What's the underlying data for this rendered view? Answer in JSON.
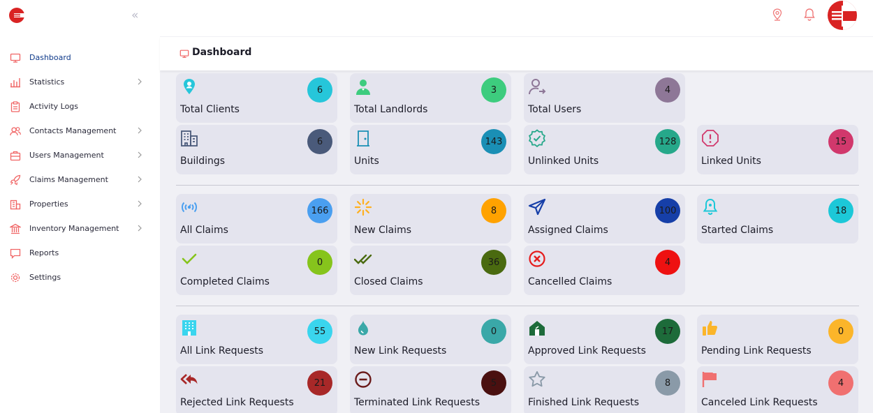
{
  "sidebar": {
    "items": [
      {
        "label": "Dashboard",
        "active": true,
        "chevron": false,
        "icon": "monitor-icon"
      },
      {
        "label": "Statistics",
        "active": false,
        "chevron": true,
        "icon": "bar-chart-icon"
      },
      {
        "label": "Activity Logs",
        "active": false,
        "chevron": false,
        "icon": "clipboard-icon"
      },
      {
        "label": "Contacts Management",
        "active": false,
        "chevron": true,
        "icon": "contacts-icon"
      },
      {
        "label": "Users Management",
        "active": false,
        "chevron": true,
        "icon": "briefcase-icon"
      },
      {
        "label": "Claims Management",
        "active": false,
        "chevron": true,
        "icon": "rocket-icon"
      },
      {
        "label": "Properties",
        "active": false,
        "chevron": true,
        "icon": "building-icon"
      },
      {
        "label": "Inventory Management",
        "active": false,
        "chevron": true,
        "icon": "bank-icon"
      },
      {
        "label": "Reports",
        "active": false,
        "chevron": false,
        "icon": "message-icon"
      },
      {
        "label": "Settings",
        "active": false,
        "chevron": false,
        "icon": "gear-icon"
      }
    ]
  },
  "page": {
    "title": "Dashboard"
  },
  "colors": {
    "brand_red": "#d92323",
    "accent": "#f06464"
  },
  "cards": [
    {
      "label": "Total Clients",
      "value": "6",
      "badge_color": "#26c6da",
      "icon": "client-pin-icon",
      "icon_color": "#26c6da"
    },
    {
      "label": "Total Landlords",
      "value": "3",
      "badge_color": "#3dcc7e",
      "icon": "landlord-icon",
      "icon_color": "#3dcc7e"
    },
    {
      "label": "Total Users",
      "value": "4",
      "badge_color": "#8e7797",
      "icon": "user-arrow-icon",
      "icon_color": "#8e7797"
    },
    {
      "label": "Buildings",
      "value": "6",
      "badge_color": "#4a5a7a",
      "icon": "buildings-icon",
      "icon_color": "#4a5a7a"
    },
    {
      "label": "Units",
      "value": "143",
      "badge_color": "#1a8fb5",
      "icon": "door-icon",
      "icon_color": "#1a8fb5"
    },
    {
      "label": "Unlinked Units",
      "value": "128",
      "badge_color": "#26a88a",
      "icon": "verified-badge-icon",
      "icon_color": "#26a88a"
    },
    {
      "label": "Linked Units",
      "value": "15",
      "badge_color": "#d1386c",
      "icon": "alert-octagon-icon",
      "icon_color": "#d1386c"
    },
    {
      "label": "All Claims",
      "value": "166",
      "badge_color": "#4a9ff0",
      "icon": "broadcast-icon",
      "icon_color": "#4a9ff0"
    },
    {
      "label": "New Claims",
      "value": "8",
      "badge_color": "#ffa200",
      "icon": "sparkle-icon",
      "icon_color": "#ffb020"
    },
    {
      "label": "Assigned Claims",
      "value": "100",
      "badge_color": "#163fa8",
      "icon": "send-arrow-icon",
      "icon_color": "#163fa8"
    },
    {
      "label": "Started Claims",
      "value": "18",
      "badge_color": "#1cc8d8",
      "icon": "bell-icon",
      "icon_color": "#1cc8d8"
    },
    {
      "label": "Completed Claims",
      "value": "0",
      "badge_color": "#86c41c",
      "icon": "check-icon",
      "icon_color": "#86c41c"
    },
    {
      "label": "Closed Claims",
      "value": "36",
      "badge_color": "#4a6a10",
      "icon": "double-check-icon",
      "icon_color": "#4a6a10"
    },
    {
      "label": "Cancelled Claims",
      "value": "4",
      "badge_color": "#ee1111",
      "icon": "x-circle-icon",
      "icon_color": "#e51c1c"
    },
    {
      "label": "All Link Requests",
      "value": "55",
      "badge_color": "#3ad5ee",
      "icon": "office-building-icon",
      "icon_color": "#3ad5ee"
    },
    {
      "label": "New Link Requests",
      "value": "0",
      "badge_color": "#3aa8a8",
      "icon": "drop-icon",
      "icon_color": "#3aa8a8"
    },
    {
      "label": "Approved Link Requests",
      "value": "17",
      "badge_color": "#1d6b3a",
      "icon": "house-icon",
      "icon_color": "#1d6b3a"
    },
    {
      "label": "Pending Link Requests",
      "value": "0",
      "badge_color": "#fbb52a",
      "icon": "thumbs-up-icon",
      "icon_color": "#fbb52a"
    },
    {
      "label": "Rejected Link Requests",
      "value": "21",
      "badge_color": "#a82828",
      "icon": "reply-all-icon",
      "icon_color": "#a82828"
    },
    {
      "label": "Terminated Link Requests",
      "value": "5",
      "badge_color": "#4a1010",
      "icon": "minus-circle-icon",
      "icon_color": "#6a1a1a"
    },
    {
      "label": "Finished Link Requests",
      "value": "8",
      "badge_color": "#8a9aa8",
      "icon": "star-icon",
      "icon_color": "#8a9aa8"
    },
    {
      "label": "Canceled Link Requests",
      "value": "4",
      "badge_color": "#f07070",
      "icon": "flag-icon",
      "icon_color": "#f07070"
    }
  ]
}
